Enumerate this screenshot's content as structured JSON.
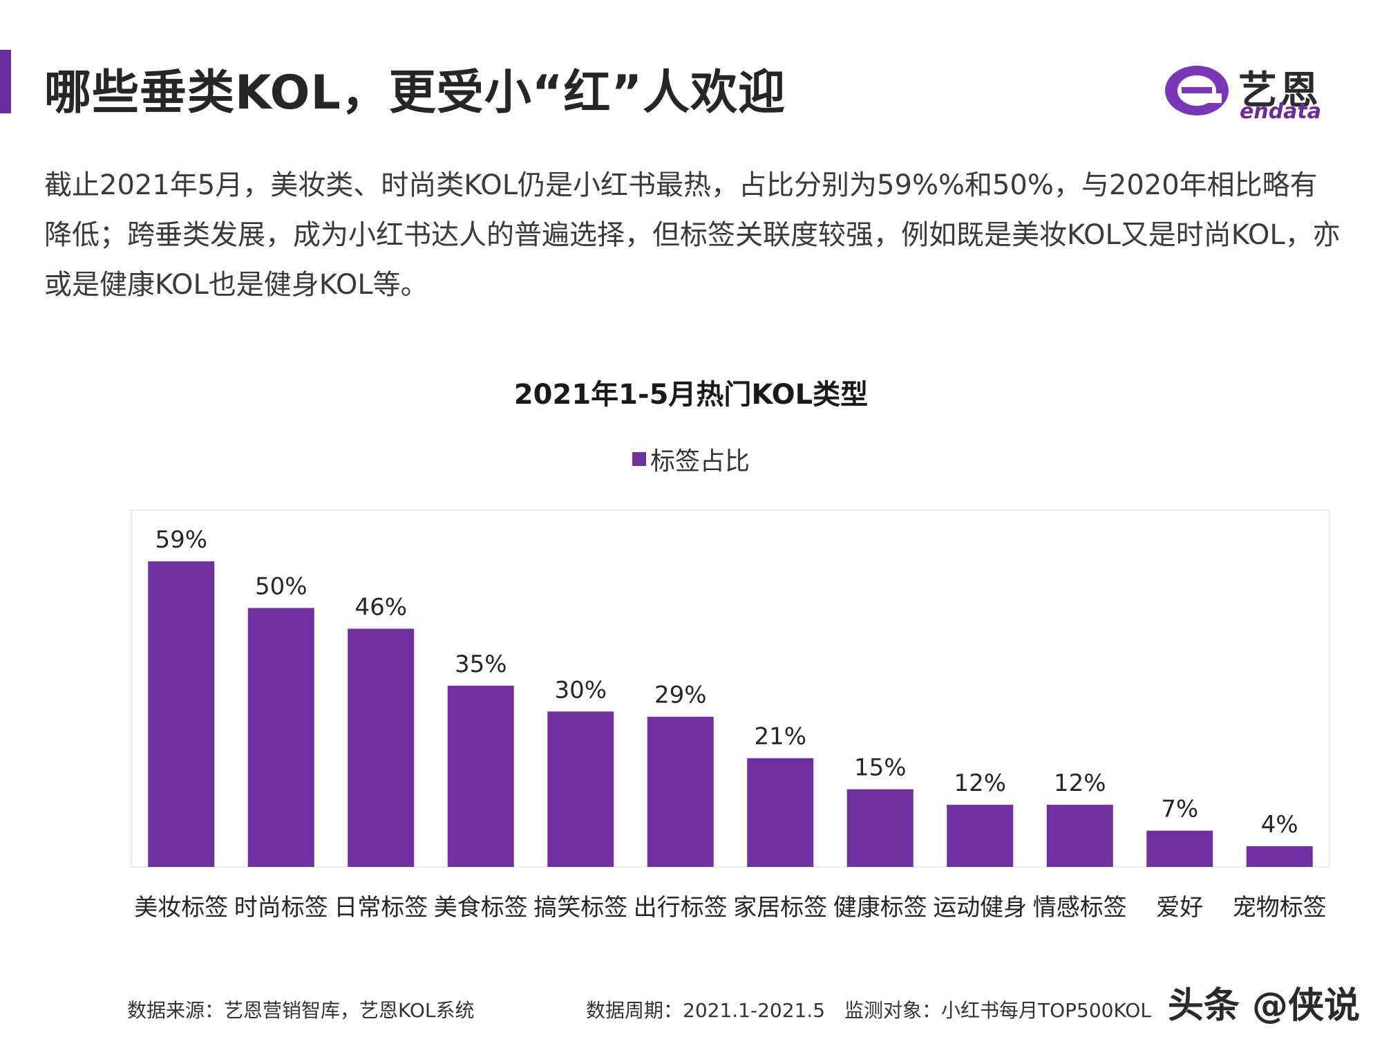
{
  "header": {
    "title": "哪些垂类KOL，更受小“红”人欢迎",
    "logo_cn": "艺恩",
    "logo_en": "endata"
  },
  "intro_text": "截止2021年5月，美妆类、时尚类KOL仍是小红书最热，占比分别为59%%和50%，与2020年相比略有降低；跨垂类发展，成为小红书达人的普遍选择，但标签关联度较强，例如既是美妆KOL又是时尚KOL，亦或是健康KOL也是健身KOL等。",
  "colors": {
    "bar": "#7030a0",
    "accent": "#6b2d9c"
  },
  "chart_data": {
    "type": "bar",
    "title": "2021年1-5月热门KOL类型",
    "categories": [
      "美妆标签",
      "时尚标签",
      "日常标签",
      "美食标签",
      "搞笑标签",
      "出行标签",
      "家居标签",
      "健康标签",
      "运动健身",
      "情感标签",
      "爱好",
      "宠物标签"
    ],
    "series": [
      {
        "name": "标签占比",
        "values": [
          59,
          50,
          46,
          35,
          30,
          29,
          21,
          15,
          12,
          12,
          7,
          4
        ]
      }
    ],
    "value_suffix": "%",
    "ylim": [
      0,
      62
    ],
    "legend_position": "top-center",
    "grid": false
  },
  "footer": {
    "source": "数据来源：艺恩营销智库，艺恩KOL系统",
    "period": "数据周期：2021.1-2021.5",
    "target": "监测对象：小红书每月TOP500KOL"
  },
  "watermark": "头条 @侠说"
}
